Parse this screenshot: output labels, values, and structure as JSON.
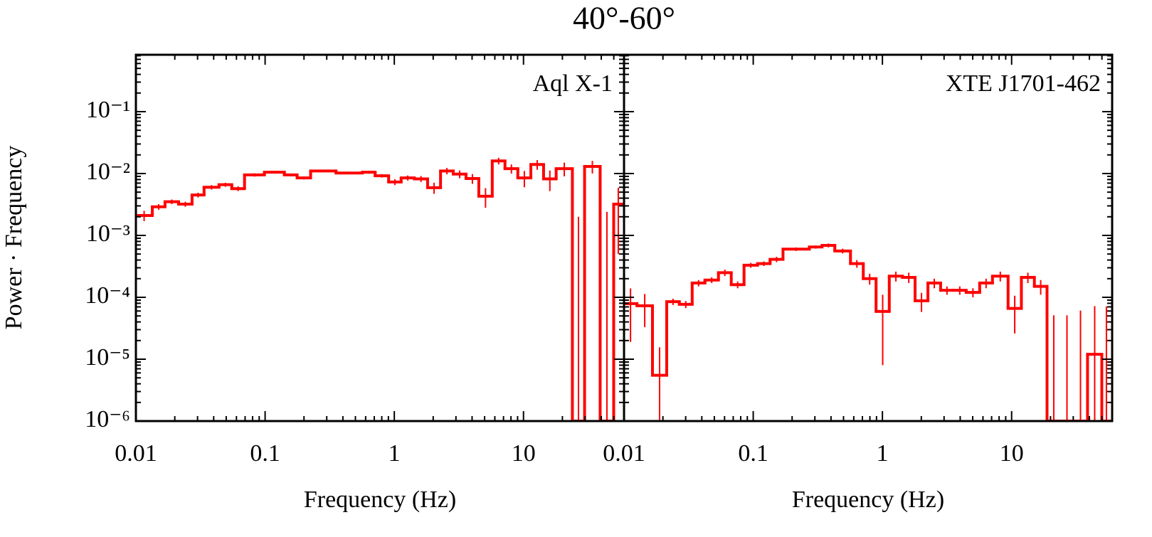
{
  "title": "40°-60°",
  "chart_data": [
    {
      "type": "step",
      "label": "Aql X-1",
      "xlabel": "Frequency (Hz)",
      "ylabel": "Power · Frequency",
      "xscale": "log",
      "yscale": "log",
      "xlim": [
        0.01,
        60
      ],
      "ylim": [
        1e-06,
        0.83
      ],
      "xticks": [
        0.01,
        0.1,
        1,
        10
      ],
      "yticks": [
        {
          "value": 1e-06,
          "label": "10⁻⁶"
        },
        {
          "value": 1e-05,
          "label": "10⁻⁵"
        },
        {
          "value": 0.0001,
          "label": "10⁻⁴"
        },
        {
          "value": 0.001,
          "label": "10⁻³"
        },
        {
          "value": 0.01,
          "label": "10⁻²"
        },
        {
          "value": 0.1,
          "label": "10⁻¹"
        }
      ],
      "series": [
        {
          "color": "#ff0000",
          "bins": [
            0.01,
            0.0134,
            0.0168,
            0.0214,
            0.0272,
            0.0337,
            0.044,
            0.0552,
            0.0693,
            0.0988,
            0.141,
            0.177,
            0.225,
            0.354,
            0.566,
            0.711,
            0.904,
            1.13,
            1.43,
            1.81,
            2.28,
            2.86,
            3.59,
            4.51,
            5.73,
            7.19,
            9.04,
            11.4,
            14.3,
            17.9,
            23.9,
            29.7,
            39.2,
            49.9,
            58.8
          ],
          "values": [
            0.0021,
            0.0029,
            0.0035,
            0.0032,
            0.0045,
            0.006,
            0.0066,
            0.0057,
            0.0095,
            0.0105,
            0.0095,
            0.0085,
            0.011,
            0.0102,
            0.0105,
            0.0092,
            0.0073,
            0.0085,
            0.0082,
            0.0059,
            0.011,
            0.0098,
            0.0083,
            0.0043,
            0.016,
            0.012,
            0.0085,
            0.014,
            0.0082,
            0.012,
            1e-06,
            0.013,
            1e-06,
            0.0032
          ],
          "errors": [
            0.0004,
            0.0003,
            0.0003,
            0.0003,
            0.0004,
            0.0005,
            0.0005,
            0.0005,
            0.0006,
            0.0005,
            0.0005,
            0.0005,
            0.0005,
            0.0004,
            0.0006,
            0.0006,
            0.0008,
            0.0008,
            0.0009,
            0.0012,
            0.0013,
            0.0014,
            0.0015,
            0.0015,
            0.002,
            0.002,
            0.0025,
            0.0025,
            0.003,
            0.003,
            0.002,
            0.003,
            0.0024,
            0.0027
          ]
        }
      ]
    },
    {
      "type": "step",
      "label": "XTE J1701-462",
      "xlabel": "Frequency (Hz)",
      "xscale": "log",
      "yscale": "log",
      "xlim": [
        0.01,
        60
      ],
      "ylim": [
        1e-06,
        0.83
      ],
      "xticks": [
        0.01,
        0.1,
        1,
        10
      ],
      "series": [
        {
          "color": "#ff0000",
          "bins": [
            0.01,
            0.0126,
            0.0166,
            0.0214,
            0.0268,
            0.0337,
            0.0423,
            0.0538,
            0.0676,
            0.0849,
            0.108,
            0.135,
            0.17,
            0.272,
            0.341,
            0.428,
            0.566,
            0.711,
            0.893,
            1.13,
            1.43,
            1.79,
            2.25,
            2.82,
            3.54,
            4.45,
            5.66,
            7.11,
            9.39,
            11.9,
            15,
            18.8,
            23.9,
            30.1,
            38.7,
            49.9,
            58.8
          ],
          "values": [
            7.9e-05,
            7.3e-05,
            5.5e-06,
            8.5e-05,
            7.7e-05,
            0.00017,
            0.00019,
            0.00025,
            0.00016,
            0.00033,
            0.00035,
            0.00041,
            0.0006,
            0.00065,
            0.00069,
            0.00056,
            0.00035,
            0.0002,
            5.9e-05,
            0.00022,
            0.00021,
            8.8e-05,
            0.00017,
            0.00013,
            0.00013,
            0.00012,
            0.00017,
            0.00022,
            6.6e-05,
            0.00021,
            0.00015,
            1e-06,
            1e-06,
            1e-06,
            1.2e-05,
            1e-06
          ],
          "errors": [
            6e-05,
            4e-05,
            1e-05,
            1e-05,
            1e-05,
            2e-05,
            2e-05,
            3e-05,
            2e-05,
            3e-05,
            3e-05,
            4e-05,
            4e-05,
            4e-05,
            5e-05,
            5e-05,
            5e-05,
            4e-05,
            5.1e-05,
            4e-05,
            4e-05,
            3e-05,
            3e-05,
            2e-05,
            2e-05,
            2e-05,
            3e-05,
            4e-05,
            4e-05,
            4e-05,
            4e-05,
            5e-05,
            5e-05,
            6e-05,
            6e-05,
            7e-05
          ]
        }
      ]
    }
  ]
}
